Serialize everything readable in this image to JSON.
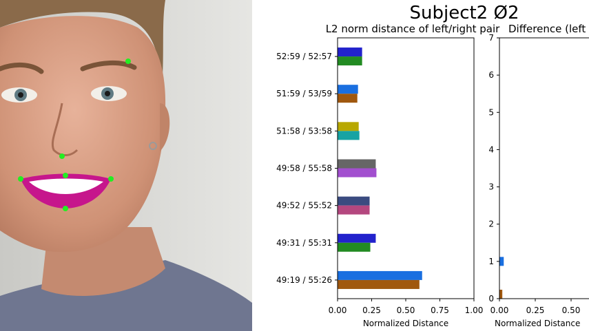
{
  "figure": {
    "title": "Subject2 Ø2"
  },
  "landmark_color": "#22ee22",
  "lip_color": "#c6168c",
  "chart_data": [
    {
      "type": "bar",
      "orientation": "horizontal",
      "title": "L2 norm distance of left/right pair",
      "xlabel": "Normalized Distance",
      "ylabel": "",
      "xlim": [
        0,
        1
      ],
      "xticks": [
        "0.00",
        "0.25",
        "0.50",
        "0.75",
        "1.00"
      ],
      "categories": [
        "49:19 / 55:26",
        "49:31 / 55:31",
        "49:52 / 55:52",
        "49:58 / 55:58",
        "51:58 / 53:58",
        "51:59 / 53/59",
        "52:59 / 52:57"
      ],
      "pairs": [
        {
          "left": 0.62,
          "right": 0.6,
          "left_color": "#1a6fe0",
          "right_color": "#a0580e"
        },
        {
          "left": 0.28,
          "right": 0.24,
          "left_color": "#2222cc",
          "right_color": "#228b22"
        },
        {
          "left": 0.235,
          "right": 0.235,
          "left_color": "#3a4b80",
          "right_color": "#b4477f"
        },
        {
          "left": 0.28,
          "right": 0.285,
          "left_color": "#666666",
          "right_color": "#a24fcf"
        },
        {
          "left": 0.155,
          "right": 0.16,
          "left_color": "#b8a800",
          "right_color": "#17a3a3"
        },
        {
          "left": 0.15,
          "right": 0.145,
          "left_color": "#1a6fe0",
          "right_color": "#a0580e"
        },
        {
          "left": 0.18,
          "right": 0.18,
          "left_color": "#2222cc",
          "right_color": "#228b22"
        }
      ],
      "grid": false
    },
    {
      "type": "bar",
      "orientation": "horizontal",
      "title": "Difference (left",
      "xlabel": "Normalized Distance",
      "ylabel": "",
      "yticks": [
        "0",
        "1",
        "2",
        "3",
        "4",
        "5",
        "6",
        "7"
      ],
      "xticks": [
        "0.00",
        "0.25",
        "0.50"
      ],
      "ylim": [
        0,
        7
      ],
      "bars": [
        {
          "y": 0.0,
          "value": 0.02,
          "color": "#a0580e"
        },
        {
          "y": 1.0,
          "value": 0.03,
          "color": "#1a6fe0"
        }
      ],
      "grid": false
    }
  ]
}
